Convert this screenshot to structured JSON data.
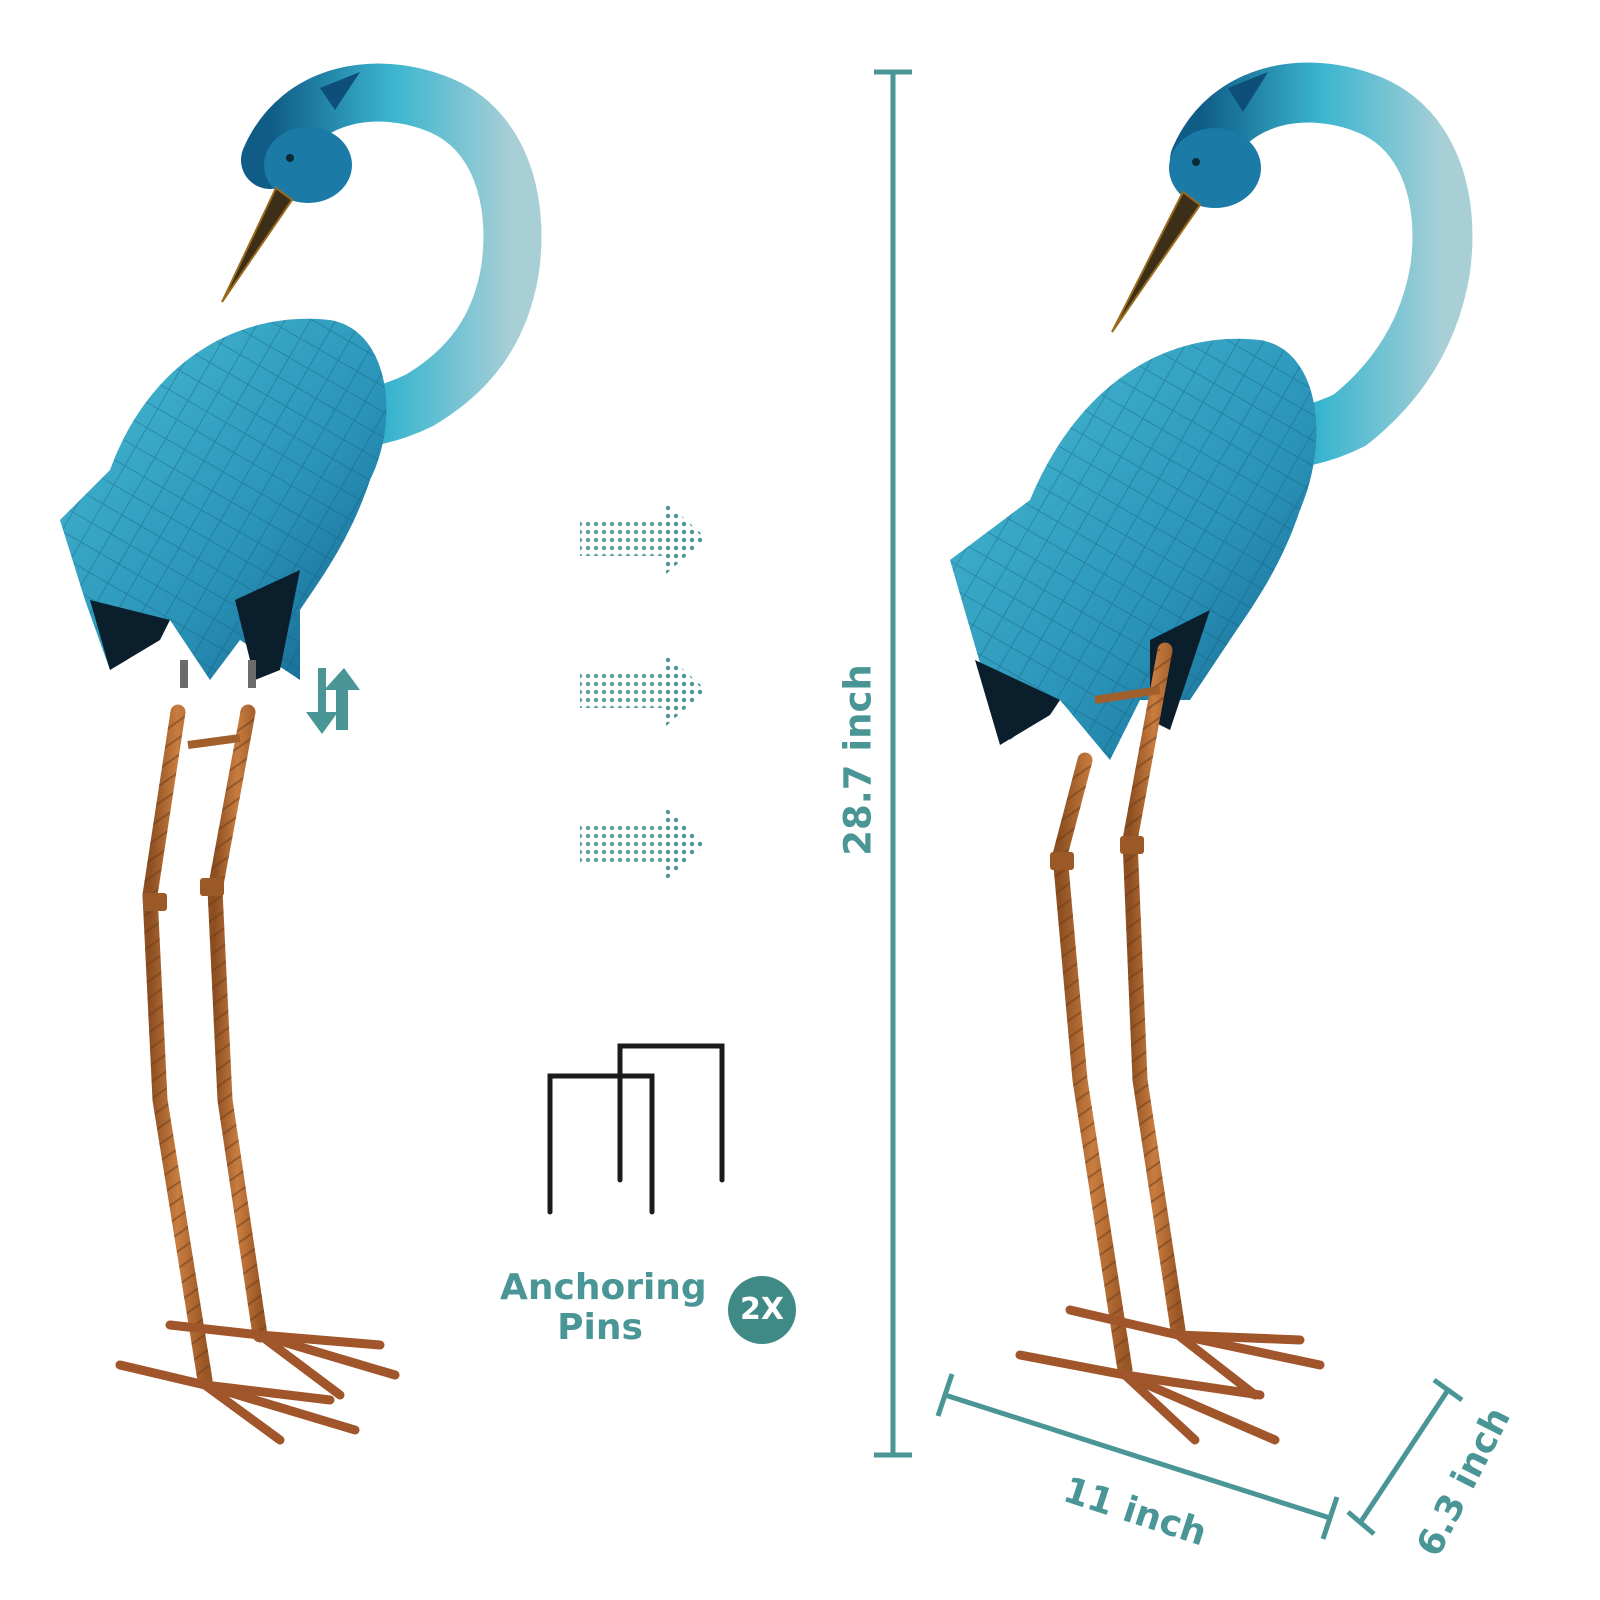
{
  "dimensions": {
    "height": "28.7 inch",
    "width": "11 inch",
    "depth": "6.3 inch"
  },
  "pins": {
    "label_line1": "Anchoring",
    "label_line2": "Pins",
    "quantity": "2X"
  },
  "colors": {
    "accent": "#4a9595",
    "badge": "#3f8a86",
    "body_blue": "#2fa4c2",
    "body_dark": "#0d4f77",
    "leg_copper": "#b86a33",
    "pin_black": "#1b1b1b"
  },
  "icons": [
    "crane-figure",
    "swap-arrows-icon",
    "dotted-arrow-icon",
    "anchoring-pin-icon"
  ]
}
